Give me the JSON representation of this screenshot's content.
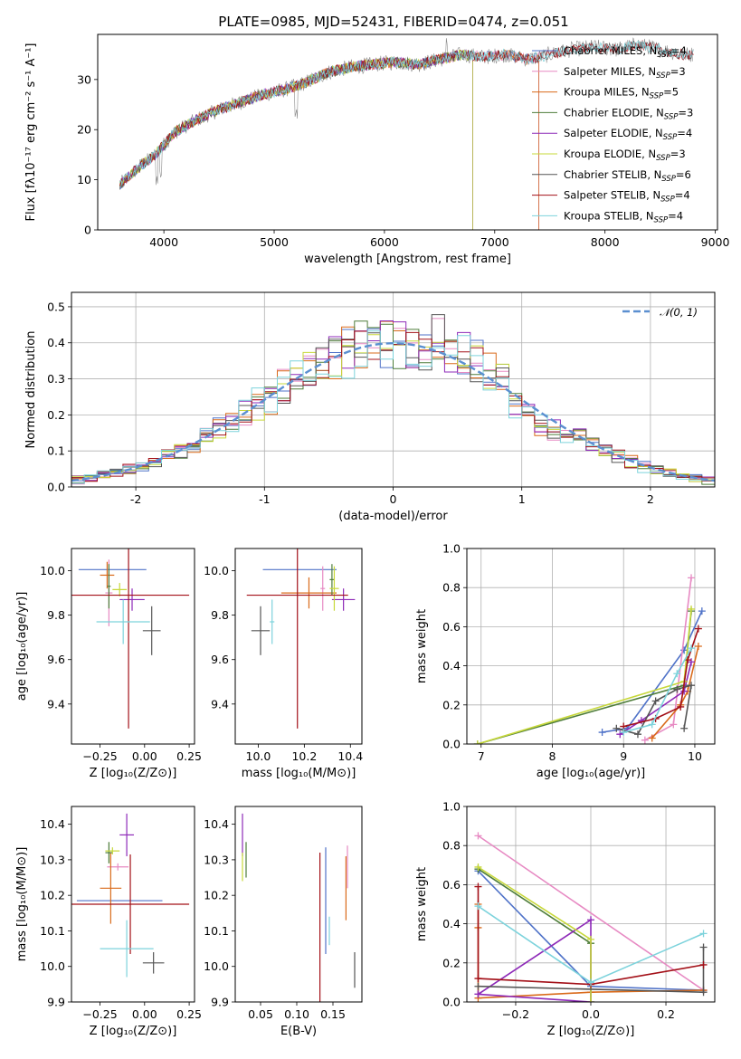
{
  "figure_title": "PLATE=0985, MJD=52431, FIBERID=0474, z=0.051",
  "series_colors": [
    "#4f72c8",
    "#e78ac3",
    "#d96a1a",
    "#4e7d3a",
    "#8e2ab8",
    "#c7d83a",
    "#555555",
    "#a31018",
    "#7dd3dc"
  ],
  "chart_data": [
    {
      "id": "spectrum",
      "type": "line",
      "title": "PLATE=0985, MJD=52431, FIBERID=0474, z=0.051",
      "xlabel": "wavelength [Angstrom, rest frame]",
      "ylabel": "Flux [fλ10⁻¹⁷ erg cm⁻² s⁻¹ A⁻¹]",
      "xlim": [
        3400,
        9020
      ],
      "ylim": [
        0,
        39
      ],
      "xticks": [
        4000,
        5000,
        6000,
        7000,
        8000,
        9000
      ],
      "yticks": [
        0,
        10,
        20,
        30
      ],
      "grid": false,
      "legend": "top-right",
      "continuum": [
        [
          3600,
          9
        ],
        [
          3700,
          11
        ],
        [
          3800,
          13
        ],
        [
          3900,
          14.5
        ],
        [
          4000,
          17
        ],
        [
          4100,
          19.5
        ],
        [
          4300,
          22
        ],
        [
          4500,
          24
        ],
        [
          4700,
          25.5
        ],
        [
          4900,
          27
        ],
        [
          5100,
          28
        ],
        [
          5300,
          29.5
        ],
        [
          5500,
          31.5
        ],
        [
          5700,
          32.5
        ],
        [
          5900,
          33
        ],
        [
          6100,
          33.5
        ],
        [
          6300,
          33
        ],
        [
          6500,
          34
        ],
        [
          6700,
          35
        ],
        [
          6900,
          34.5
        ],
        [
          7100,
          35
        ],
        [
          7300,
          34
        ],
        [
          7500,
          35
        ],
        [
          7700,
          36
        ],
        [
          7900,
          36.5
        ],
        [
          8100,
          36
        ],
        [
          8300,
          37
        ],
        [
          8500,
          36
        ],
        [
          8700,
          35
        ]
      ],
      "series": [
        {
          "name": "Chabrier MILES, N$_{SSP}$=4",
          "label": "Chabrier MILES, N",
          "sub": "SSP",
          "n": "=4",
          "x_end": 7400
        },
        {
          "name": "Salpeter MILES, N$_{SSP}$=3",
          "label": "Salpeter MILES, N",
          "sub": "SSP",
          "n": "=3",
          "x_end": 7400
        },
        {
          "name": "Kroupa MILES, N$_{SSP}$=5",
          "label": "Kroupa MILES, N",
          "sub": "SSP",
          "n": "=5",
          "x_end": 7400
        },
        {
          "name": "Chabrier ELODIE, N$_{SSP}$=3",
          "label": "Chabrier ELODIE, N",
          "sub": "SSP",
          "n": "=3",
          "x_end": 6800
        },
        {
          "name": "Salpeter ELODIE, N$_{SSP}$=4",
          "label": "Salpeter ELODIE, N",
          "sub": "SSP",
          "n": "=4",
          "x_end": 6800
        },
        {
          "name": "Kroupa ELODIE, N$_{SSP}$=3",
          "label": "Kroupa ELODIE, N",
          "sub": "SSP",
          "n": "=3",
          "x_end": 6800
        },
        {
          "name": "Chabrier STELIB, N$_{SSP}$=6",
          "label": "Chabrier STELIB, N",
          "sub": "SSP",
          "n": "=6",
          "x_end": 8800
        },
        {
          "name": "Salpeter STELIB, N$_{SSP}$=4",
          "label": "Salpeter STELIB, N",
          "sub": "SSP",
          "n": "=4",
          "x_end": 8800
        },
        {
          "name": "Kroupa STELIB, N$_{SSP}$=4",
          "label": "Kroupa STELIB, N",
          "sub": "SSP",
          "n": "=4",
          "x_end": 8800
        }
      ]
    },
    {
      "id": "residuals",
      "type": "histogram",
      "xlabel": "(data-model)/error",
      "ylabel": "Normed distribution",
      "xlim": [
        -2.5,
        2.5
      ],
      "ylim": [
        0,
        0.54
      ],
      "xticks": [
        -2,
        -1,
        0,
        1,
        2
      ],
      "yticks": [
        0.0,
        0.1,
        0.2,
        0.3,
        0.4,
        0.5
      ],
      "grid": true,
      "legend": "top-right",
      "reference_curve": {
        "name": "N(0,1)",
        "label": "𝒩(0, 1)",
        "mean": 0,
        "sigma": 1
      },
      "bin_width": 0.1
    },
    {
      "id": "age_vs_Z",
      "type": "errorbar",
      "xlabel": "Z [log₁₀(Z/Z⊙)]",
      "ylabel": "age  [log₁₀(age/yr)]",
      "xlim": [
        -0.41,
        0.28
      ],
      "ylim": [
        9.22,
        10.1
      ],
      "xticks": [
        -0.25,
        0.0,
        0.25
      ],
      "xticklabels": [
        "−0.25",
        "0.00",
        "0.25"
      ],
      "yticks": [
        9.4,
        9.6,
        9.8,
        10.0
      ],
      "grid": false,
      "points": [
        {
          "x": -0.18,
          "xerr": 0.19,
          "y": 10.005,
          "yerr": 0.0
        },
        {
          "x": -0.2,
          "xerr": 0.02,
          "y": 9.9,
          "yerr": 0.15
        },
        {
          "x": -0.21,
          "xerr": 0.04,
          "y": 9.98,
          "yerr": 0.06
        },
        {
          "x": -0.2,
          "xerr": 0.01,
          "y": 9.93,
          "yerr": 0.1
        },
        {
          "x": -0.07,
          "xerr": 0.07,
          "y": 9.87,
          "yerr": 0.05
        },
        {
          "x": -0.14,
          "xerr": 0.04,
          "y": 9.915,
          "yerr": 0.03
        },
        {
          "x": 0.04,
          "xerr": 0.05,
          "y": 9.73,
          "yerr": 0.11
        },
        {
          "x": -0.09,
          "xerr": 0.34,
          "y": 9.89,
          "yerr": 0.6
        },
        {
          "x": -0.12,
          "xerr": 0.15,
          "y": 9.77,
          "yerr": 0.1
        }
      ]
    },
    {
      "id": "age_vs_mass",
      "type": "errorbar",
      "xlabel": "mass [log₁₀(M/M⊙)]",
      "ylabel": "",
      "xlim": [
        9.9,
        10.45
      ],
      "ylim": [
        9.22,
        10.1
      ],
      "xticks": [
        10.0,
        10.2,
        10.4
      ],
      "yticks": [
        9.4,
        9.6,
        9.8,
        10.0
      ],
      "grid": false,
      "points": [
        {
          "x": 10.18,
          "xerr": 0.16,
          "y": 10.005,
          "yerr": 0.0
        },
        {
          "x": 10.28,
          "xerr": 0.01,
          "y": 9.92,
          "yerr": 0.1
        },
        {
          "x": 10.22,
          "xerr": 0.12,
          "y": 9.9,
          "yerr": 0.07
        },
        {
          "x": 10.32,
          "xerr": 0.01,
          "y": 9.96,
          "yerr": 0.07
        },
        {
          "x": 10.37,
          "xerr": 0.05,
          "y": 9.87,
          "yerr": 0.05
        },
        {
          "x": 10.33,
          "xerr": 0.02,
          "y": 9.92,
          "yerr": 0.1
        },
        {
          "x": 10.01,
          "xerr": 0.04,
          "y": 9.73,
          "yerr": 0.11
        },
        {
          "x": 10.17,
          "xerr": 0.22,
          "y": 9.89,
          "yerr": 0.6
        },
        {
          "x": 10.06,
          "xerr": 0.01,
          "y": 9.77,
          "yerr": 0.1
        }
      ]
    },
    {
      "id": "weight_vs_age",
      "type": "line",
      "xlabel": "age  [log₁₀(age/yr)]",
      "ylabel": "mass weight",
      "xlim": [
        6.8,
        10.28
      ],
      "ylim": [
        0,
        1.0
      ],
      "xticks": [
        7,
        8,
        9,
        10
      ],
      "yticks": [
        0.0,
        0.2,
        0.4,
        0.6,
        0.8,
        1.0
      ],
      "grid": true,
      "series": [
        {
          "x": [
            8.7,
            9.05,
            9.85,
            10.1
          ],
          "y": [
            0.06,
            0.08,
            0.48,
            0.68
          ]
        },
        {
          "x": [
            9.3,
            9.7,
            9.95
          ],
          "y": [
            0.02,
            0.1,
            0.85
          ]
        },
        {
          "x": [
            9.4,
            9.8,
            9.9,
            10.05
          ],
          "y": [
            0.03,
            0.2,
            0.27,
            0.5
          ]
        },
        {
          "x": [
            6.95,
            9.85,
            9.95
          ],
          "y": [
            0.0,
            0.3,
            0.68
          ]
        },
        {
          "x": [
            8.95,
            9.25,
            9.85,
            9.95
          ],
          "y": [
            0.05,
            0.12,
            0.27,
            0.42
          ]
        },
        {
          "x": [
            6.95,
            9.85,
            9.95
          ],
          "y": [
            0.0,
            0.32,
            0.69
          ]
        },
        {
          "x": [
            8.9,
            9.2,
            9.45,
            9.75,
            9.95,
            9.85
          ],
          "y": [
            0.08,
            0.05,
            0.22,
            0.28,
            0.3,
            0.08
          ]
        },
        {
          "x": [
            9.0,
            9.45,
            9.8,
            9.9,
            10.05
          ],
          "y": [
            0.09,
            0.13,
            0.19,
            0.43,
            0.59
          ]
        },
        {
          "x": [
            9.0,
            9.4,
            9.75,
            9.95
          ],
          "y": [
            0.06,
            0.1,
            0.36,
            0.49
          ]
        }
      ]
    },
    {
      "id": "mass_vs_Z",
      "type": "errorbar",
      "xlabel": "Z [log₁₀(Z/Z⊙)]",
      "ylabel": "mass [log₁₀(M/M⊙)]",
      "xlim": [
        -0.41,
        0.28
      ],
      "ylim": [
        9.9,
        10.45
      ],
      "xticks": [
        -0.25,
        0.0,
        0.25
      ],
      "xticklabels": [
        "−0.25",
        "0.00",
        "0.25"
      ],
      "yticks": [
        9.9,
        10.0,
        10.1,
        10.2,
        10.3,
        10.4
      ],
      "grid": false,
      "points": [
        {
          "x": -0.14,
          "xerr": 0.24,
          "y": 10.185,
          "yerr": 0.0
        },
        {
          "x": -0.15,
          "xerr": 0.06,
          "y": 10.28,
          "yerr": 0.01
        },
        {
          "x": -0.19,
          "xerr": 0.06,
          "y": 10.22,
          "yerr": 0.1
        },
        {
          "x": -0.2,
          "xerr": 0.02,
          "y": 10.32,
          "yerr": 0.03
        },
        {
          "x": -0.1,
          "xerr": 0.04,
          "y": 10.37,
          "yerr": 0.06
        },
        {
          "x": -0.18,
          "xerr": 0.04,
          "y": 10.325,
          "yerr": 0.01
        },
        {
          "x": 0.05,
          "xerr": 0.06,
          "y": 10.01,
          "yerr": 0.03
        },
        {
          "x": -0.08,
          "xerr": 0.33,
          "y": 10.175,
          "yerr": 0.14
        },
        {
          "x": -0.1,
          "xerr": 0.15,
          "y": 10.05,
          "yerr": 0.08
        }
      ]
    },
    {
      "id": "mass_vs_EBV",
      "type": "errorbar",
      "xlabel": "E(B-V)",
      "ylabel": "",
      "xlim": [
        0.015,
        0.19
      ],
      "ylim": [
        9.9,
        10.45
      ],
      "xticks": [
        0.05,
        0.1,
        0.15
      ],
      "yticks": [
        9.9,
        10.0,
        10.1,
        10.2,
        10.3,
        10.4
      ],
      "grid": false,
      "points": [
        {
          "x": 0.14,
          "xerr": 0,
          "y": 10.185,
          "yerr": 0.15
        },
        {
          "x": 0.17,
          "xerr": 0,
          "y": 10.28,
          "yerr": 0.06
        },
        {
          "x": 0.168,
          "xerr": 0,
          "y": 10.22,
          "yerr": 0.09
        },
        {
          "x": 0.03,
          "xerr": 0,
          "y": 10.3,
          "yerr": 0.05
        },
        {
          "x": 0.025,
          "xerr": 0,
          "y": 10.37,
          "yerr": 0.06
        },
        {
          "x": 0.025,
          "xerr": 0,
          "y": 10.28,
          "yerr": 0.04
        },
        {
          "x": 0.18,
          "xerr": 0,
          "y": 9.99,
          "yerr": 0.05
        },
        {
          "x": 0.132,
          "xerr": 0,
          "y": 10.11,
          "yerr": 0.21
        },
        {
          "x": 0.145,
          "xerr": 0,
          "y": 10.1,
          "yerr": 0.04
        }
      ]
    },
    {
      "id": "weight_vs_Z",
      "type": "line",
      "xlabel": "Z [log₁₀(Z/Z⊙)]",
      "ylabel": "mass weight",
      "xlim": [
        -0.33,
        0.33
      ],
      "ylim": [
        0,
        1.0
      ],
      "xticks": [
        -0.2,
        0.0,
        0.2
      ],
      "xticklabels": [
        "−0.2",
        "0.0",
        "0.2"
      ],
      "yticks": [
        0.0,
        0.2,
        0.4,
        0.6,
        0.8,
        1.0
      ],
      "grid": true,
      "series": [
        {
          "x": [
            -0.3,
            -0.3,
            0.0,
            0.3
          ],
          "y": [
            0.68,
            0.67,
            0.08,
            0.06
          ]
        },
        {
          "x": [
            -0.3,
            0.3
          ],
          "y": [
            0.85,
            0.06
          ]
        },
        {
          "x": [
            -0.3,
            -0.3,
            -0.3,
            0.0,
            0.3
          ],
          "y": [
            0.5,
            0.38,
            0.02,
            0.05,
            0.06
          ]
        },
        {
          "x": [
            -0.3,
            0.0,
            0.0
          ],
          "y": [
            0.68,
            0.3,
            0.0
          ]
        },
        {
          "x": [
            -0.3,
            0.0,
            0.0,
            -0.3
          ],
          "y": [
            0.04,
            0.42,
            0.0,
            0.04
          ]
        },
        {
          "x": [
            -0.3,
            0.0,
            0.0
          ],
          "y": [
            0.69,
            0.32,
            0.0
          ]
        },
        {
          "x": [
            -0.3,
            0.3,
            0.3
          ],
          "y": [
            0.08,
            0.05,
            0.28
          ]
        },
        {
          "x": [
            -0.3,
            -0.3,
            0.0,
            0.3
          ],
          "y": [
            0.59,
            0.12,
            0.09,
            0.19
          ]
        },
        {
          "x": [
            -0.3,
            0.0,
            0.3
          ],
          "y": [
            0.49,
            0.1,
            0.35
          ]
        }
      ]
    }
  ]
}
